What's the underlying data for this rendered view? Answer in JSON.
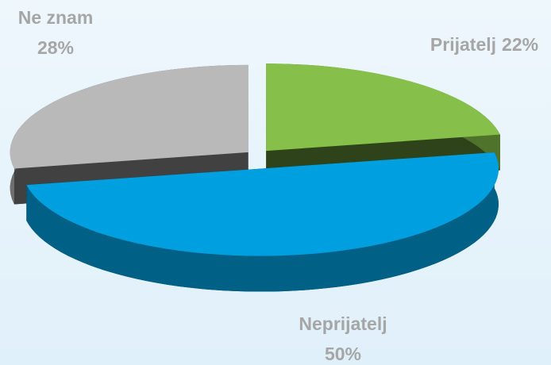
{
  "chart_data": {
    "type": "pie",
    "categories": [
      "Prijatelj",
      "Neprijatelj",
      "Ne znam"
    ],
    "values": [
      22,
      50,
      28
    ],
    "value_labels": [
      "22%",
      "50%",
      "28%"
    ],
    "colors": [
      "#86c04a",
      "#00a0e0",
      "#b9b9b9"
    ]
  }
}
